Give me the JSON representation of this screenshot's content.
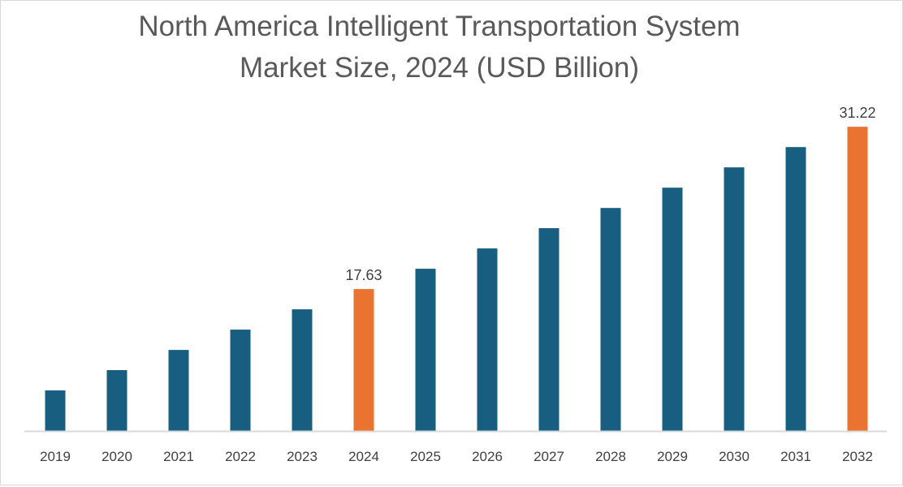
{
  "chart_data": {
    "type": "bar",
    "title_line1": "North America Intelligent Transportation System",
    "title_line2": "Market Size, 2024 (USD Billion)",
    "xlabel": "",
    "ylabel": "",
    "categories": [
      "2019",
      "2020",
      "2021",
      "2022",
      "2023",
      "2024",
      "2025",
      "2026",
      "2027",
      "2028",
      "2029",
      "2030",
      "2031",
      "2032"
    ],
    "values": [
      9.14,
      10.84,
      12.53,
      14.23,
      15.93,
      17.63,
      19.33,
      21.03,
      22.73,
      24.42,
      26.12,
      27.82,
      29.52,
      31.22
    ],
    "data_labels": {
      "2024": "17.63",
      "2032": "31.22"
    },
    "highlighted": [
      "2024",
      "2032"
    ],
    "ylim": [
      5.74,
      33
    ],
    "y_axis_visible": false,
    "grid": false,
    "legend": "none",
    "colors": {
      "bar": "#175e80",
      "highlight": "#e97431",
      "axis": "#d9d9d9",
      "text": "#595959"
    }
  }
}
